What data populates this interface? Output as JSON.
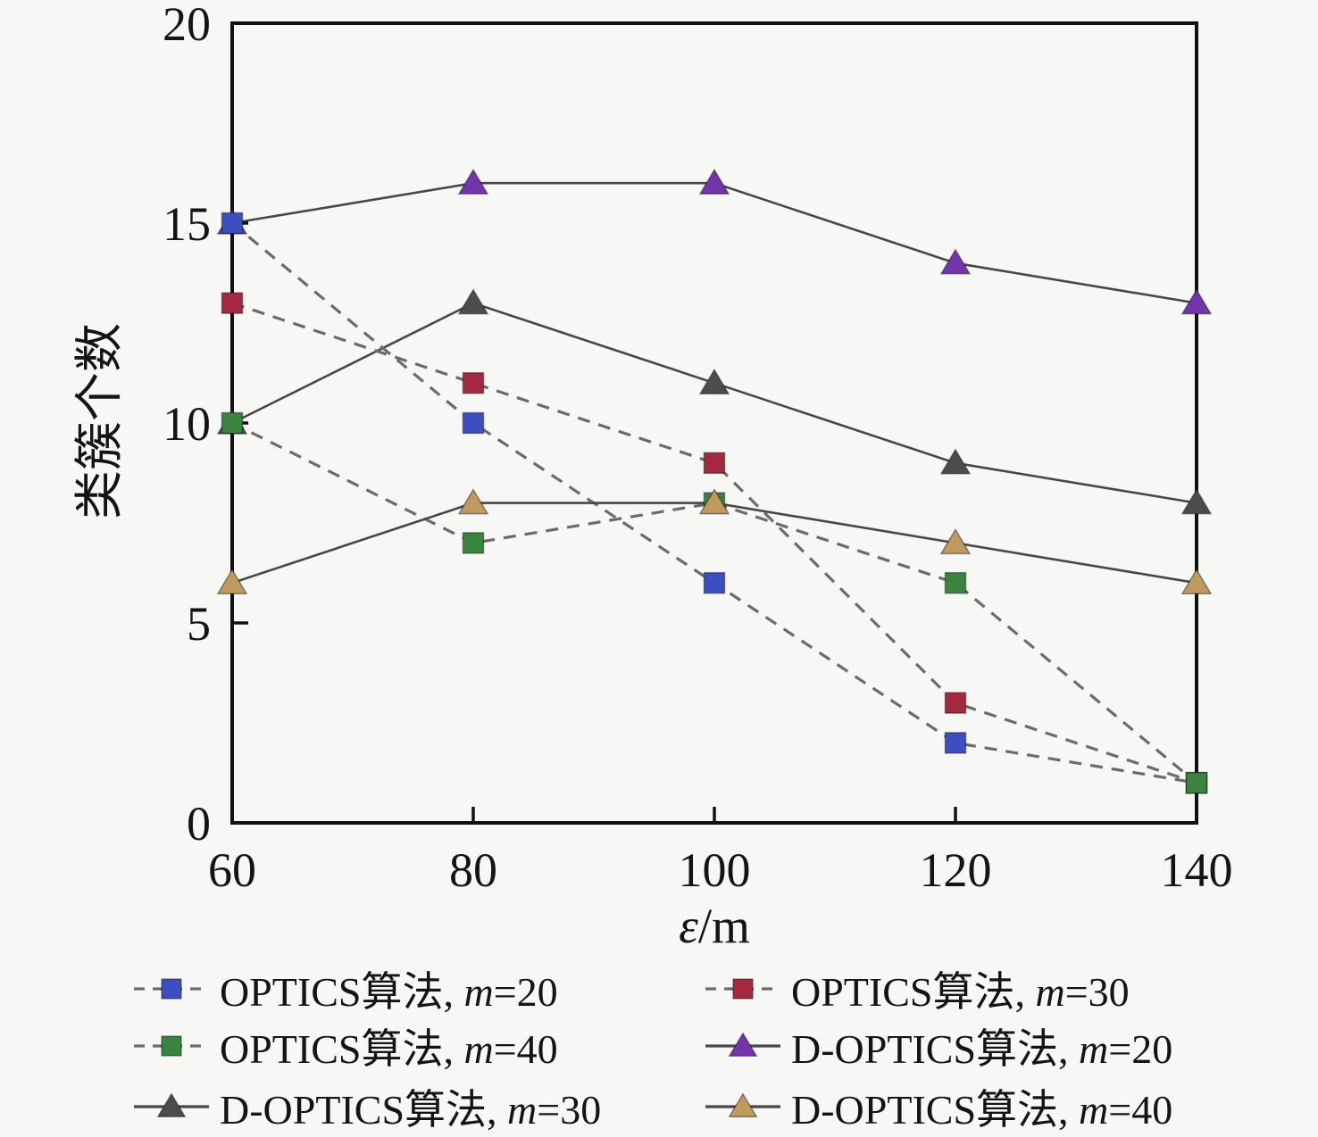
{
  "figure": {
    "background": "#f7f7f5",
    "frame_color": "#111111"
  },
  "chart_data": {
    "type": "line",
    "title": "",
    "xlabel": "ε/m",
    "xlabel_italic": "ε",
    "xlabel_rest": "/m",
    "ylabel": "类簇个数",
    "x": [
      60,
      80,
      100,
      120,
      140
    ],
    "xticks": [
      60,
      80,
      100,
      120,
      140
    ],
    "yticks": [
      0,
      5,
      10,
      15,
      20
    ],
    "xlim": [
      60,
      140
    ],
    "ylim": [
      0,
      20
    ],
    "grid": false,
    "legend_position": "below, 2 columns x 3 rows",
    "line_stroke": {
      "dashed": "#6b6b6b",
      "solid": "#474747"
    },
    "series": [
      {
        "name": "OPTICS算法, m=20",
        "name_prefix": "OPTICS算法, ",
        "name_param": "m",
        "name_suffix": "=20",
        "marker": "square",
        "line_style": "dashed",
        "color": "#3D4FC0",
        "values": [
          15,
          10,
          6,
          2,
          1
        ]
      },
      {
        "name": "OPTICS算法, m=30",
        "name_prefix": "OPTICS算法, ",
        "name_param": "m",
        "name_suffix": "=30",
        "marker": "square",
        "line_style": "dashed",
        "color": "#A4293E",
        "values": [
          13,
          11,
          9,
          3,
          1
        ]
      },
      {
        "name": "OPTICS算法, m=40",
        "name_prefix": "OPTICS算法, ",
        "name_param": "m",
        "name_suffix": "=40",
        "marker": "square",
        "line_style": "dashed",
        "color": "#3A8440",
        "values": [
          10,
          7,
          8,
          6,
          1
        ]
      },
      {
        "name": "D-OPTICS算法, m=20",
        "name_prefix": "D-OPTICS算法, ",
        "name_param": "m",
        "name_suffix": "=20",
        "marker": "triangle",
        "line_style": "solid",
        "color": "#7434AE",
        "values": [
          15,
          16,
          16,
          14,
          13
        ]
      },
      {
        "name": "D-OPTICS算法, m=30",
        "name_prefix": "D-OPTICS算法, ",
        "name_param": "m",
        "name_suffix": "=30",
        "marker": "triangle",
        "line_style": "solid",
        "color": "#4C4C4C",
        "values": [
          10,
          13,
          11,
          9,
          8
        ]
      },
      {
        "name": "D-OPTICS算法, m=40",
        "name_prefix": "D-OPTICS算法, ",
        "name_param": "m",
        "name_suffix": "=40",
        "marker": "triangle",
        "line_style": "solid",
        "color": "#C09A5E",
        "values": [
          6,
          8,
          8,
          7,
          6
        ]
      }
    ],
    "draw_order": [
      4,
      3,
      1,
      0,
      2,
      5
    ],
    "legend_rows": [
      [
        0,
        1
      ],
      [
        2,
        3
      ],
      [
        4,
        5
      ]
    ]
  }
}
